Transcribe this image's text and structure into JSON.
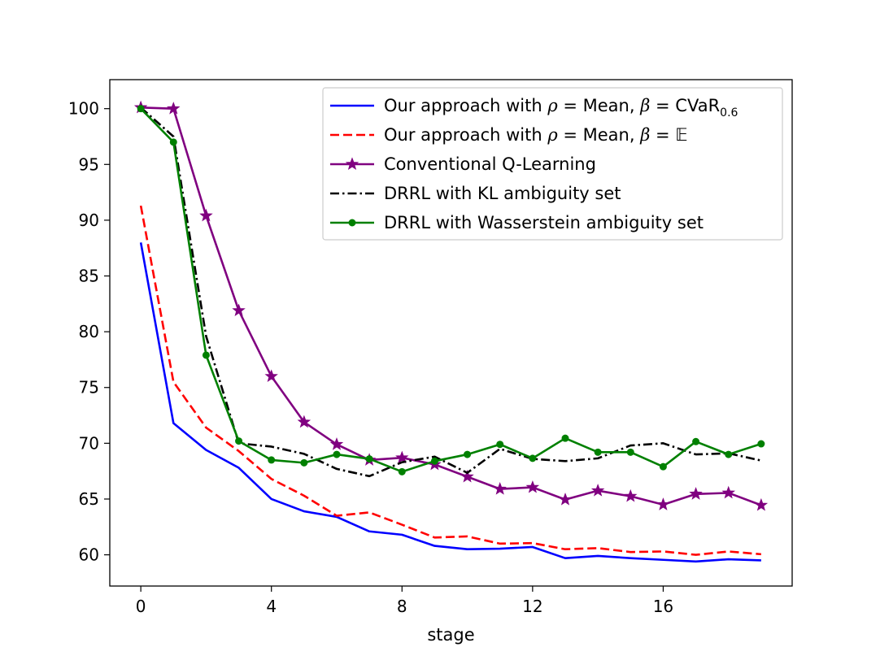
{
  "chart_data": {
    "type": "line",
    "title": "",
    "xlabel": "stage",
    "ylabel": "",
    "xlim": [
      -0.95,
      19.95
    ],
    "ylim": [
      57.2,
      102.6
    ],
    "xticks": [
      0,
      4,
      8,
      12,
      16
    ],
    "xtick_labels": [
      "0",
      "4",
      "8",
      "12",
      "16"
    ],
    "yticks": [
      60,
      65,
      70,
      75,
      80,
      85,
      90,
      95,
      100
    ],
    "ytick_labels": [
      "60",
      "65",
      "70",
      "75",
      "80",
      "85",
      "90",
      "95",
      "100"
    ],
    "grid": false,
    "legend_position": "top-right",
    "x": [
      0,
      1,
      2,
      3,
      4,
      5,
      6,
      7,
      8,
      9,
      10,
      11,
      12,
      13,
      14,
      15,
      16,
      17,
      18,
      19
    ],
    "series": [
      {
        "name": "Our approach with ρ = Mean, β = CVaR0.6",
        "legend_parts": {
          "prefix": "Our approach with ",
          "rho": "ρ",
          "eq1": " = Mean, ",
          "beta": "β",
          "eq2": " = ",
          "measure": "CVaR",
          "sub": "0.6"
        },
        "color": "#0000ff",
        "style": "solid",
        "marker": "none",
        "values": [
          88.0,
          71.8,
          69.4,
          67.8,
          65.0,
          63.9,
          63.4,
          62.1,
          61.8,
          60.8,
          60.5,
          60.55,
          60.7,
          59.7,
          59.9,
          59.7,
          59.55,
          59.4,
          59.6,
          59.5
        ]
      },
      {
        "name": "Our approach with ρ = Mean, β = 𝔼",
        "legend_parts": {
          "prefix": "Our approach with ",
          "rho": "ρ",
          "eq1": " = Mean, ",
          "beta": "β",
          "eq2": " = ",
          "measure": "𝔼"
        },
        "color": "#ff0000",
        "style": "dashed",
        "marker": "none",
        "values": [
          91.3,
          75.5,
          71.4,
          69.3,
          66.8,
          65.3,
          63.5,
          63.8,
          62.7,
          61.55,
          61.65,
          61.0,
          61.05,
          60.5,
          60.6,
          60.25,
          60.3,
          60.0,
          60.3,
          60.05
        ]
      },
      {
        "name": "Conventional Q-Learning",
        "color": "#800080",
        "style": "solid",
        "marker": "star",
        "values": [
          100.1,
          100.0,
          90.4,
          81.9,
          76.0,
          71.9,
          69.9,
          68.5,
          68.7,
          68.1,
          67.0,
          65.9,
          66.05,
          64.95,
          65.75,
          65.25,
          64.5,
          65.45,
          65.55,
          64.45
        ]
      },
      {
        "name": "DRRL with KL ambiguity set",
        "color": "#000000",
        "style": "dashdot",
        "marker": "none",
        "values": [
          100.1,
          97.5,
          79.6,
          70.0,
          69.7,
          69.05,
          67.7,
          67.05,
          68.3,
          68.8,
          67.35,
          69.5,
          68.6,
          68.4,
          68.65,
          69.8,
          70.0,
          69.0,
          69.1,
          68.45
        ]
      },
      {
        "name": "DRRL with Wasserstein ambiguity set",
        "color": "#008000",
        "style": "solid",
        "marker": "circle",
        "values": [
          100.0,
          97.0,
          77.9,
          70.2,
          68.5,
          68.25,
          69.0,
          68.6,
          67.45,
          68.4,
          69.0,
          69.9,
          68.65,
          70.45,
          69.2,
          69.2,
          67.9,
          70.15,
          69.0,
          69.95
        ]
      }
    ]
  }
}
